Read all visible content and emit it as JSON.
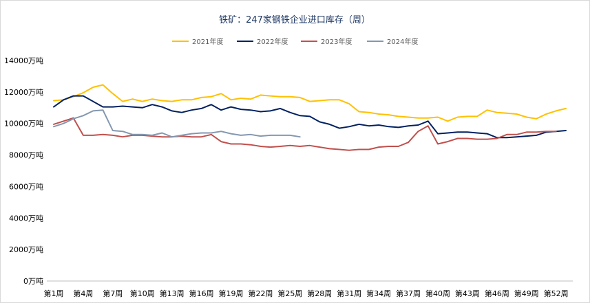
{
  "chart_data": {
    "type": "line",
    "title": "铁矿：247家钢铁企业进口库存（周）",
    "xlabel": "",
    "ylabel": "",
    "ylim": [
      0,
      14000
    ],
    "y_ticks": [
      0,
      2000,
      4000,
      6000,
      8000,
      10000,
      12000,
      14000
    ],
    "y_tick_labels": [
      "0万吨",
      "2000万吨",
      "4000万吨",
      "6000万吨",
      "8000万吨",
      "10000万吨",
      "12000万吨",
      "14000万吨"
    ],
    "x_count": 53,
    "x_tick_labels": [
      "第1周",
      "第4周",
      "第7周",
      "第10周",
      "第13周",
      "第16周",
      "第19周",
      "第22周",
      "第25周",
      "第28周",
      "第31周",
      "第34周",
      "第37周",
      "第40周",
      "第43周",
      "第46周",
      "第49周",
      "第52周"
    ],
    "x_tick_weeks": [
      1,
      4,
      7,
      10,
      13,
      16,
      19,
      22,
      25,
      28,
      31,
      34,
      37,
      40,
      43,
      46,
      49,
      52
    ],
    "grid": false,
    "legend_position": "top",
    "series": [
      {
        "name": "2021年度",
        "color": "#ffc000",
        "values": [
          11450,
          11500,
          11700,
          11950,
          12300,
          12450,
          11900,
          11400,
          11550,
          11400,
          11550,
          11450,
          11400,
          11500,
          11500,
          11650,
          11700,
          11900,
          11500,
          11600,
          11550,
          11800,
          11750,
          11700,
          11700,
          11650,
          11400,
          11450,
          11500,
          11500,
          11250,
          10750,
          10700,
          10600,
          10550,
          10450,
          10400,
          10350,
          10350,
          10400,
          10150,
          10400,
          10450,
          10450,
          10850,
          10700,
          10650,
          10600,
          10400,
          10300,
          10600,
          10800,
          10950
        ]
      },
      {
        "name": "2022年度",
        "color": "#002060",
        "values": [
          11050,
          11500,
          11750,
          11750,
          11400,
          11050,
          11050,
          11100,
          11050,
          11000,
          11200,
          11050,
          10800,
          10700,
          10850,
          10950,
          11200,
          10850,
          11050,
          10900,
          10850,
          10750,
          10800,
          10950,
          10700,
          10500,
          10450,
          10100,
          9950,
          9700,
          9800,
          9950,
          9850,
          9900,
          9800,
          9750,
          9850,
          9900,
          10150,
          9350,
          9400,
          9450,
          9450,
          9400,
          9350,
          9100,
          9100,
          9150,
          9200,
          9250,
          9450,
          9500,
          9550
        ]
      },
      {
        "name": "2023年度",
        "color": "#c0504d",
        "values": [
          9950,
          10150,
          10350,
          9250,
          9250,
          9300,
          9250,
          9150,
          9250,
          9250,
          9200,
          9150,
          9150,
          9200,
          9150,
          9150,
          9300,
          8850,
          8700,
          8700,
          8650,
          8550,
          8500,
          8550,
          8600,
          8550,
          8600,
          8500,
          8400,
          8350,
          8300,
          8350,
          8350,
          8500,
          8550,
          8550,
          8800,
          9500,
          9850,
          8700,
          8850,
          9050,
          9050,
          9000,
          9000,
          9050,
          9300,
          9300,
          9450,
          9450,
          9500,
          9500,
          null
        ]
      },
      {
        "name": "2024年度",
        "color": "#8497b0",
        "values": [
          9800,
          10000,
          10300,
          10500,
          10800,
          10850,
          9550,
          9500,
          9300,
          9300,
          9250,
          9400,
          9150,
          9250,
          9350,
          9400,
          9400,
          9500,
          9350,
          9250,
          9300,
          9200,
          9250,
          9250,
          9250,
          9150,
          null,
          null,
          null,
          null,
          null,
          null,
          null,
          null,
          null,
          null,
          null,
          null,
          null,
          null,
          null,
          null,
          null,
          null,
          null,
          null,
          null,
          null,
          null,
          null,
          null,
          null,
          null
        ]
      }
    ]
  }
}
